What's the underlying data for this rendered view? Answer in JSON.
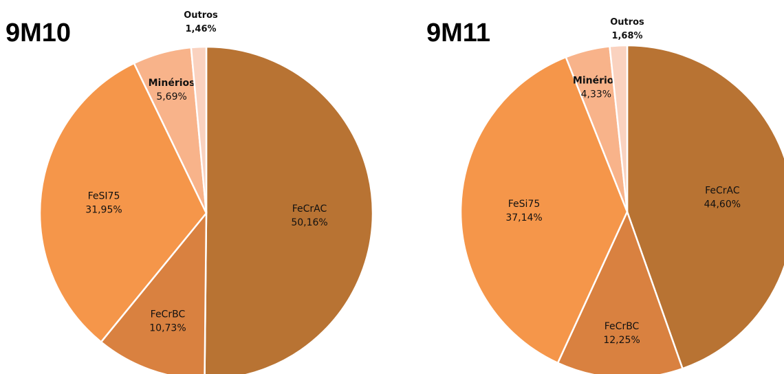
{
  "chart_data": [
    {
      "type": "pie",
      "title": "9M10",
      "slices": [
        {
          "label": "FeCrAC",
          "value": 50.16,
          "value_text": "50,16%",
          "color": "#B87333"
        },
        {
          "label": "FeCrBC",
          "value": 10.73,
          "value_text": "10,73%",
          "color": "#D98140"
        },
        {
          "label": "FeSI75",
          "value": 31.95,
          "value_text": "31,95%",
          "color": "#F5964A"
        },
        {
          "label": "Minérios",
          "value": 5.69,
          "value_text": "5,69%",
          "color": "#F8B38A"
        },
        {
          "label": "Outros",
          "value": 1.46,
          "value_text": "1,46%",
          "color": "#FAD2BF"
        }
      ]
    },
    {
      "type": "pie",
      "title": "9M11",
      "slices": [
        {
          "label": "FeCrAC",
          "value": 44.6,
          "value_text": "44,60%",
          "color": "#B87333"
        },
        {
          "label": "FeCrBC",
          "value": 12.25,
          "value_text": "12,25%",
          "color": "#D98140"
        },
        {
          "label": "FeSi75",
          "value": 37.14,
          "value_text": "37,14%",
          "color": "#F5964A"
        },
        {
          "label": "Minérios",
          "value": 4.33,
          "value_text": "4,33%",
          "color": "#F8B38A"
        },
        {
          "label": "Outros",
          "value": 1.68,
          "value_text": "1,68%",
          "color": "#FAD2BF"
        }
      ]
    }
  ]
}
